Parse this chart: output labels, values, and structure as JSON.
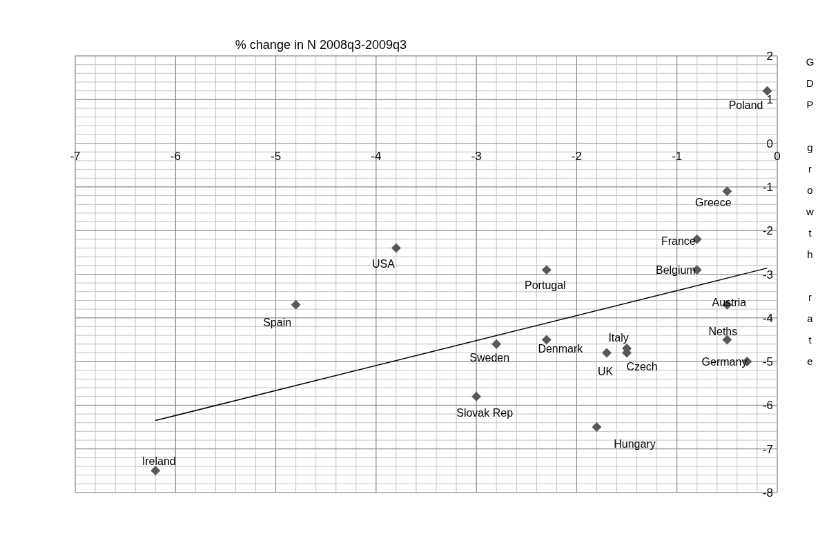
{
  "chart_data": {
    "type": "scatter",
    "title": "% change in N 2008q3-2009q3",
    "ylabel": "GDP growth rate",
    "series": [
      {
        "type": "scatter",
        "color": "#595959",
        "marker": "diamond",
        "x": [
          -0.1,
          -0.5,
          -0.8,
          -0.8,
          -2.3,
          -3.8,
          -4.8,
          -6.2,
          -0.5,
          -0.5,
          -0.3,
          -2.8,
          -2.3,
          -1.7,
          -1.5,
          -1.5,
          -3.0,
          -1.8
        ],
        "values": [
          1.2,
          -1.1,
          -2.2,
          -2.9,
          -2.9,
          -2.4,
          -3.7,
          -7.5,
          -3.7,
          -4.5,
          -5.0,
          -4.6,
          -4.5,
          -4.8,
          -4.7,
          -4.8,
          -5.8,
          -6.5
        ]
      },
      {
        "type": "line",
        "color": "#000000",
        "marker": "none",
        "x": [
          -6.2,
          -0.1
        ],
        "values": [
          -6.35,
          -2.86
        ]
      }
    ],
    "annotations": [
      {
        "text": "Poland",
        "x": -0.1,
        "y": 1.2
      },
      {
        "text": "Greece",
        "x": -0.5,
        "y": -1.1
      },
      {
        "text": "France",
        "x": -0.8,
        "y": -2.2
      },
      {
        "text": "Belgium",
        "x": -0.8,
        "y": -2.9
      },
      {
        "text": "Portugal",
        "x": -2.3,
        "y": -2.9
      },
      {
        "text": "USA",
        "x": -3.8,
        "y": -2.4
      },
      {
        "text": "Spain",
        "x": -4.8,
        "y": -3.7
      },
      {
        "text": "Ireland",
        "x": -6.2,
        "y": -7.5
      },
      {
        "text": "Austria",
        "x": -0.5,
        "y": -3.7
      },
      {
        "text": "Neths",
        "x": -0.5,
        "y": -4.5
      },
      {
        "text": "Germany",
        "x": -0.3,
        "y": -5.0
      },
      {
        "text": "Sweden",
        "x": -2.8,
        "y": -4.6
      },
      {
        "text": "Denmark",
        "x": -2.3,
        "y": -4.5
      },
      {
        "text": "UK",
        "x": -1.7,
        "y": -4.8
      },
      {
        "text": "Italy",
        "x": -1.5,
        "y": -4.7
      },
      {
        "text": "Czech",
        "x": -1.5,
        "y": -4.8
      },
      {
        "text": "Slovak Rep",
        "x": -3.0,
        "y": -5.8
      },
      {
        "text": "Hungary",
        "x": -1.8,
        "y": -6.5
      }
    ],
    "xlim": [
      -7,
      0
    ],
    "ylim": [
      -8,
      2
    ],
    "xticks": [
      -7,
      {
        "value": -6.8,
        "label": null
      },
      {
        "value": -6.6,
        "label": null
      },
      {
        "value": -6.4,
        "label": null
      },
      {
        "value": -6.2,
        "label": null
      },
      -6,
      {
        "value": -5.8,
        "label": null
      },
      {
        "value": -5.6,
        "label": null
      },
      {
        "value": -5.4,
        "label": null
      },
      {
        "value": -5.2,
        "label": null
      },
      -5,
      {
        "value": -4.8,
        "label": null
      },
      {
        "value": -4.6,
        "label": null
      },
      {
        "value": -4.4,
        "label": null
      },
      {
        "value": -4.2,
        "label": null
      },
      -4,
      {
        "value": -3.8,
        "label": null
      },
      {
        "value": -3.6,
        "label": null
      },
      {
        "value": -3.4,
        "label": null
      },
      {
        "value": -3.2,
        "label": null
      },
      -3,
      {
        "value": -2.8,
        "label": null
      },
      {
        "value": -2.6,
        "label": null
      },
      {
        "value": -2.4,
        "label": null
      },
      {
        "value": -2.2,
        "label": null
      },
      -2,
      {
        "value": -1.8,
        "label": null
      },
      {
        "value": -1.6,
        "label": null
      },
      {
        "value": -1.4,
        "label": null
      },
      {
        "value": -1.2,
        "label": null
      },
      -1,
      {
        "value": -0.8,
        "label": null
      },
      {
        "value": -0.6,
        "label": null
      },
      {
        "value": -0.4,
        "label": null
      },
      {
        "value": -0.2,
        "label": null
      },
      0
    ],
    "yticks": [
      2,
      {
        "value": 1.8,
        "label": null
      },
      {
        "value": 1.6,
        "label": null
      },
      {
        "value": 1.4,
        "label": null
      },
      {
        "value": 1.2,
        "label": null
      },
      1,
      {
        "value": 0.8,
        "label": null
      },
      {
        "value": 0.6,
        "label": null
      },
      {
        "value": 0.4,
        "label": null
      },
      {
        "value": 0.2,
        "label": null
      },
      0,
      {
        "value": -0.2,
        "label": null
      },
      {
        "value": -0.4,
        "label": null
      },
      {
        "value": -0.6,
        "label": null
      },
      {
        "value": -0.8,
        "label": null
      },
      -1,
      {
        "value": -1.2,
        "label": null
      },
      {
        "value": -1.4,
        "label": null
      },
      {
        "value": -1.6,
        "label": null
      },
      {
        "value": -1.8,
        "label": null
      },
      -2,
      {
        "value": -2.2,
        "label": null
      },
      {
        "value": -2.4,
        "label": null
      },
      {
        "value": -2.6,
        "label": null
      },
      {
        "value": -2.8,
        "label": null
      },
      -3,
      {
        "value": -3.2,
        "label": null
      },
      {
        "value": -3.4,
        "label": null
      },
      {
        "value": -3.6,
        "label": null
      },
      {
        "value": -3.8,
        "label": null
      },
      -4,
      {
        "value": -4.2,
        "label": null
      },
      {
        "value": -4.4,
        "label": null
      },
      {
        "value": -4.6,
        "label": null
      },
      {
        "value": -4.8,
        "label": null
      },
      -5,
      {
        "value": -5.2,
        "label": null
      },
      {
        "value": -5.4,
        "label": null
      },
      {
        "value": -5.6,
        "label": null
      },
      {
        "value": -5.8,
        "label": null
      },
      -6,
      {
        "value": -6.2,
        "label": null
      },
      {
        "value": -6.4,
        "label": null
      },
      {
        "value": -6.6,
        "label": null
      },
      {
        "value": -6.8,
        "label": null
      },
      -7,
      {
        "value": -7.2,
        "label": null
      },
      {
        "value": -7.4,
        "label": null
      },
      {
        "value": -7.6,
        "label": null
      },
      {
        "value": -7.8,
        "label": null
      },
      -8
    ],
    "grid": true
  }
}
